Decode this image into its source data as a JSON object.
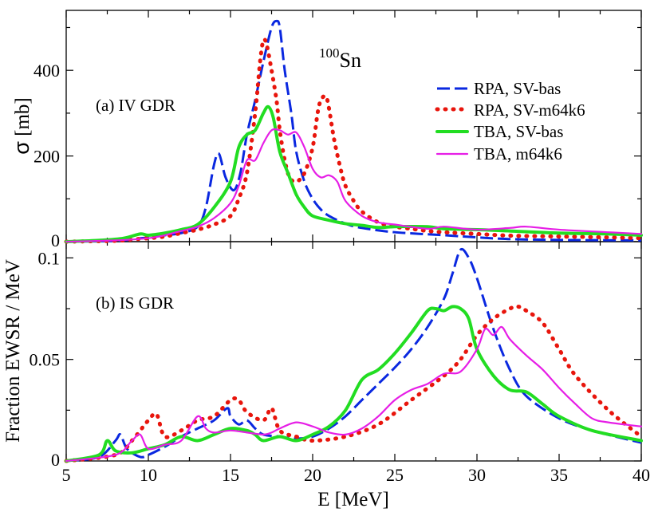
{
  "chart_data": {
    "type": "line",
    "x_axis": {
      "label": "E [MeV]",
      "range": [
        5,
        40
      ],
      "ticks": [
        "5",
        "10",
        "15",
        "20",
        "25",
        "30",
        "35",
        "40"
      ]
    },
    "legend": {
      "placement": "top-right",
      "entries": [
        {
          "name": "RPA, SV-bas",
          "color": "#0a28e0",
          "style": "dash-dot"
        },
        {
          "name": "RPA, SV-m64k6",
          "color": "#e8150c",
          "style": "dotted"
        },
        {
          "name": "TBA, SV-bas",
          "color": "#22dd22",
          "style": "solid-thick"
        },
        {
          "name": "TBA, m64k6",
          "color": "#e61ee6",
          "style": "solid"
        }
      ]
    },
    "annotation": {
      "mass": "100",
      "element": "Sn"
    },
    "panels": [
      {
        "id": "a",
        "label": "(a)  IV GDR",
        "ylabel_symbol": "σ",
        "ylabel_rest": " [mb]",
        "ylim": [
          0,
          540
        ],
        "y_ticks": [
          0,
          200,
          400
        ],
        "y_tick_labels": [
          "0",
          "200",
          "400"
        ],
        "series": [
          {
            "name": "RPA, SV-bas",
            "x": [
              5,
              8,
              10,
              11,
              12,
              13,
              13.5,
              14,
              14.3,
              14.7,
              15.2,
              15.6,
              16,
              16.5,
              17,
              17.5,
              17.8,
              18,
              18.3,
              18.7,
              19,
              19.5,
              20,
              20.5,
              21,
              22,
              23,
              25,
              28,
              30,
              32,
              35,
              40
            ],
            "y": [
              0,
              2,
              10,
              15,
              20,
              35,
              80,
              180,
              205,
              150,
              120,
              160,
              250,
              330,
              420,
              500,
              515,
              500,
              400,
              300,
              210,
              140,
              100,
              75,
              60,
              42,
              32,
              22,
              15,
              10,
              6,
              4,
              3
            ]
          },
          {
            "name": "RPA, SV-m64k6",
            "x": [
              5,
              8,
              9,
              10,
              11,
              12,
              13,
              14,
              15,
              15.5,
              16,
              16.5,
              16.8,
              17,
              17.2,
              17.5,
              17.8,
              18,
              18.3,
              18.6,
              19,
              19.5,
              20,
              20.3,
              20.5,
              20.8,
              21,
              21.3,
              21.7,
              22,
              22.5,
              23,
              24,
              25,
              26,
              27,
              28,
              30,
              32,
              35,
              38,
              40
            ],
            "y": [
              0,
              2,
              5,
              8,
              12,
              20,
              28,
              40,
              60,
              100,
              160,
              300,
              420,
              470,
              460,
              400,
              330,
              260,
              190,
              150,
              140,
              160,
              220,
              300,
              330,
              340,
              310,
              240,
              170,
              130,
              95,
              70,
              45,
              35,
              30,
              25,
              22,
              18,
              14,
              12,
              10,
              8
            ]
          },
          {
            "name": "TBA, SV-bas",
            "x": [
              5,
              7,
              8.5,
              9.5,
              10,
              11,
              12,
              13,
              14,
              15,
              15.5,
              16,
              16.5,
              17,
              17.3,
              17.6,
              18,
              18.5,
              19,
              19.5,
              20,
              21,
              22,
              23,
              24,
              25,
              27,
              28,
              30,
              32,
              35,
              38,
              40
            ],
            "y": [
              0,
              3,
              8,
              18,
              15,
              20,
              28,
              40,
              80,
              140,
              220,
              250,
              260,
              300,
              315,
              290,
              210,
              160,
              110,
              80,
              60,
              50,
              42,
              38,
              33,
              35,
              35,
              30,
              28,
              25,
              20,
              18,
              15
            ]
          },
          {
            "name": "TBA, m64k6",
            "x": [
              5,
              8,
              10,
              11,
              12,
              13,
              14,
              15,
              15.5,
              16,
              16.5,
              17,
              17.5,
              18,
              18.5,
              19,
              19.5,
              20,
              20.5,
              21,
              21.5,
              22,
              23,
              24,
              25,
              27,
              28,
              30,
              32,
              33,
              35,
              38,
              40
            ],
            "y": [
              0,
              3,
              8,
              15,
              25,
              35,
              55,
              90,
              130,
              190,
              190,
              230,
              260,
              260,
              250,
              255,
              220,
              170,
              150,
              155,
              140,
              95,
              60,
              45,
              40,
              30,
              35,
              28,
              32,
              35,
              28,
              22,
              18
            ]
          }
        ]
      },
      {
        "id": "b",
        "label": "(b)  IS GDR",
        "ylabel": "Fraction EWSR / MeV",
        "ylim": [
          0,
          0.108
        ],
        "y_ticks": [
          0,
          0.05,
          0.1
        ],
        "y_tick_labels": [
          "0",
          "0.05",
          "0.1"
        ],
        "series": [
          {
            "name": "RPA, SV-bas",
            "x": [
              5,
              7,
              8,
              8.3,
              8.7,
              9.5,
              10,
              11,
              12,
              13,
              14,
              14.8,
              15,
              15.5,
              16,
              16.5,
              17,
              18,
              19,
              20,
              21,
              22,
              23,
              24,
              25,
              26,
              27,
              28,
              28.5,
              29,
              29.5,
              30,
              31,
              32,
              33,
              35,
              37,
              40
            ],
            "y": [
              0,
              0.002,
              0.01,
              0.013,
              0.006,
              0.002,
              0.003,
              0.007,
              0.012,
              0.016,
              0.02,
              0.026,
              0.022,
              0.018,
              0.02,
              0.016,
              0.013,
              0.012,
              0.011,
              0.012,
              0.016,
              0.022,
              0.03,
              0.038,
              0.046,
              0.055,
              0.066,
              0.08,
              0.092,
              0.104,
              0.1,
              0.09,
              0.065,
              0.045,
              0.032,
              0.021,
              0.015,
              0.009
            ]
          },
          {
            "name": "RPA, SV-m64k6",
            "x": [
              5,
              8,
              9,
              10,
              10.5,
              11,
              12,
              13,
              14,
              15,
              15.5,
              16,
              17,
              17.5,
              18,
              19,
              20,
              22,
              24,
              26,
              28,
              29,
              30,
              31,
              32,
              32.5,
              33,
              34,
              35,
              36,
              38,
              40
            ],
            "y": [
              0,
              0.003,
              0.01,
              0.02,
              0.023,
              0.012,
              0.015,
              0.02,
              0.022,
              0.03,
              0.03,
              0.024,
              0.02,
              0.026,
              0.015,
              0.012,
              0.01,
              0.012,
              0.018,
              0.03,
              0.042,
              0.05,
              0.062,
              0.07,
              0.075,
              0.076,
              0.074,
              0.068,
              0.055,
              0.042,
              0.025,
              0.012
            ]
          },
          {
            "name": "TBA, SV-bas",
            "x": [
              5,
              7,
              7.5,
              8,
              9,
              10,
              11,
              12,
              13,
              14,
              15,
              16,
              16.5,
              17,
              18,
              19,
              20,
              21,
              22,
              23,
              24,
              25,
              26,
              27,
              27.5,
              28,
              28.5,
              29,
              29.5,
              30,
              31,
              32,
              33,
              34,
              35,
              37,
              40
            ],
            "y": [
              0,
              0.003,
              0.01,
              0.005,
              0.004,
              0.006,
              0.008,
              0.012,
              0.01,
              0.013,
              0.016,
              0.015,
              0.013,
              0.01,
              0.012,
              0.01,
              0.013,
              0.017,
              0.025,
              0.04,
              0.045,
              0.053,
              0.063,
              0.074,
              0.075,
              0.074,
              0.076,
              0.075,
              0.07,
              0.055,
              0.042,
              0.035,
              0.034,
              0.028,
              0.022,
              0.015,
              0.01
            ]
          },
          {
            "name": "TBA, m64k6",
            "x": [
              5,
              8,
              9,
              9.5,
              10,
              11,
              12,
              13,
              13.5,
              14,
              15,
              16,
              17,
              17.5,
              18,
              19,
              20,
              21,
              22,
              23,
              24,
              25,
              26,
              27,
              28,
              29,
              30,
              30.5,
              31,
              31.5,
              32,
              33,
              34,
              35,
              36,
              37,
              38,
              40
            ],
            "y": [
              0,
              0.003,
              0.01,
              0.013,
              0.006,
              0.008,
              0.01,
              0.022,
              0.016,
              0.014,
              0.015,
              0.014,
              0.013,
              0.014,
              0.016,
              0.019,
              0.017,
              0.014,
              0.013,
              0.016,
              0.022,
              0.03,
              0.035,
              0.038,
              0.043,
              0.044,
              0.055,
              0.065,
              0.062,
              0.066,
              0.06,
              0.052,
              0.045,
              0.036,
              0.028,
              0.021,
              0.019,
              0.017
            ]
          }
        ]
      }
    ]
  }
}
